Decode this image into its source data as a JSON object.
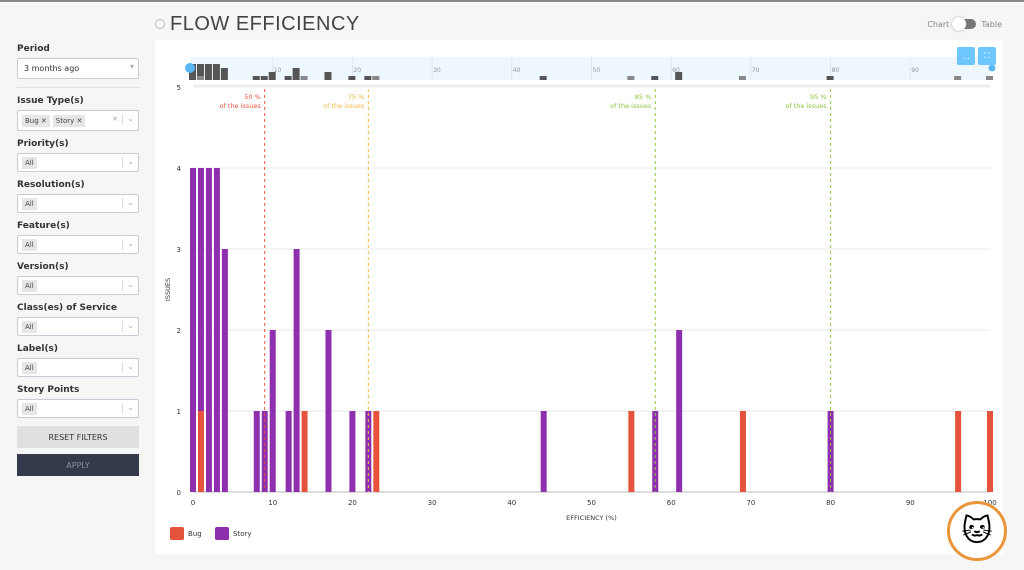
{
  "header": {
    "title": "FLOW EFFICIENCY",
    "toggle_left": "Chart",
    "toggle_right": "Table"
  },
  "filters": {
    "period_label": "Period",
    "period_value": "3 months ago",
    "issue_types_label": "Issue Type(s)",
    "issue_types": [
      "Bug",
      "Story"
    ],
    "items": [
      {
        "label": "Priority(s)",
        "value": "All"
      },
      {
        "label": "Resolution(s)",
        "value": "All"
      },
      {
        "label": "Feature(s)",
        "value": "All"
      },
      {
        "label": "Version(s)",
        "value": "All"
      },
      {
        "label": "Class(es) of Service",
        "value": "All"
      },
      {
        "label": "Label(s)",
        "value": "All"
      },
      {
        "label": "Story Points",
        "value": "All"
      }
    ],
    "reset_label": "RESET FILTERS",
    "apply_label": "APPLY"
  },
  "toolbar": {
    "menu_label": "...",
    "fullscreen_icon": "fullscreen-icon"
  },
  "chart_data": {
    "type": "bar",
    "stacked": true,
    "xlabel": "EFFICIENCY (%)",
    "ylabel": "ISSUES",
    "xlim": [
      0,
      100
    ],
    "ylim": [
      0,
      5
    ],
    "xticks": [
      0,
      10,
      20,
      30,
      40,
      50,
      60,
      70,
      80,
      90,
      100
    ],
    "yticks": [
      0,
      1,
      2,
      3,
      4,
      5
    ],
    "grid": true,
    "legend": "bottom-left",
    "series": [
      {
        "name": "Bug",
        "color": "#e5533d",
        "points": [
          [
            1,
            1
          ],
          [
            14,
            1
          ],
          [
            23,
            1
          ],
          [
            55,
            1
          ],
          [
            69,
            1
          ],
          [
            96,
            1
          ],
          [
            100,
            1
          ]
        ]
      },
      {
        "name": "Story",
        "color": "#8e2fad",
        "points": [
          [
            0,
            4
          ],
          [
            1,
            3
          ],
          [
            2,
            4
          ],
          [
            3,
            4
          ],
          [
            4,
            3
          ],
          [
            8,
            1
          ],
          [
            9,
            1
          ],
          [
            10,
            2
          ],
          [
            12,
            1
          ],
          [
            13,
            3
          ],
          [
            17,
            2
          ],
          [
            20,
            1
          ],
          [
            22,
            1
          ],
          [
            44,
            1
          ],
          [
            58,
            1
          ],
          [
            61,
            2
          ],
          [
            80,
            1
          ]
        ]
      }
    ],
    "percentiles": [
      {
        "label": "50 %",
        "sub": "of the issues",
        "x": 9,
        "color": "#e5533d"
      },
      {
        "label": "75 %",
        "sub": "of the issues",
        "x": 22,
        "color": "#f5b942"
      },
      {
        "label": "85 %",
        "sub": "of the issues",
        "x": 58,
        "color": "#8dc63f"
      },
      {
        "label": "95 %",
        "sub": "of the issues",
        "x": 80,
        "color": "#8dc63f"
      }
    ]
  }
}
